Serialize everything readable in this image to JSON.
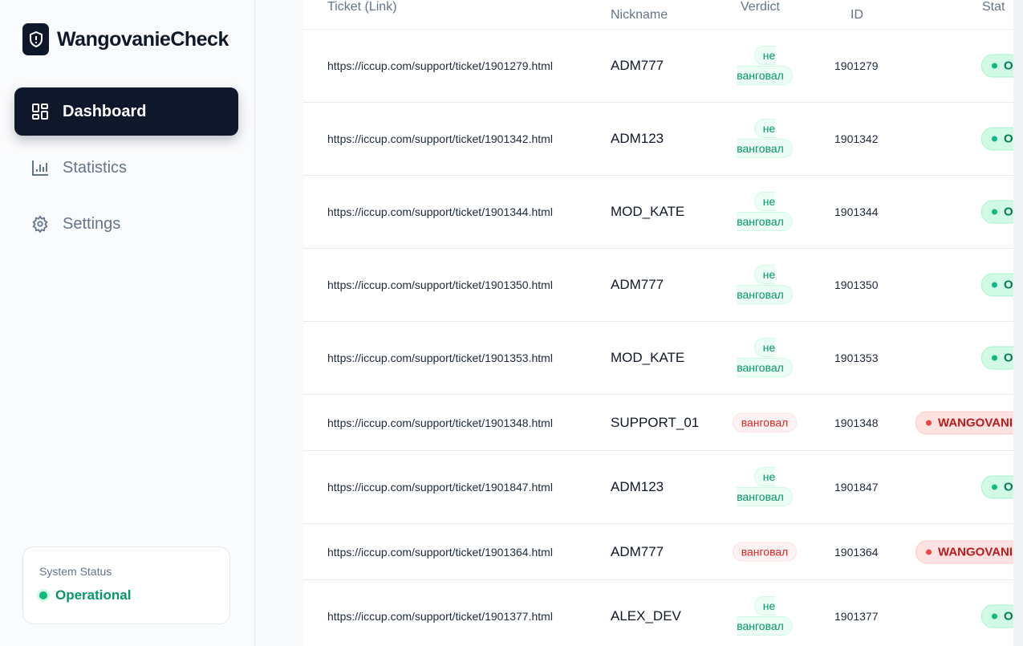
{
  "app": {
    "name": "WangovanieCheck"
  },
  "nav": [
    {
      "label": "Dashboard",
      "icon": "dashboard-icon",
      "active": true
    },
    {
      "label": "Statistics",
      "icon": "bar-chart-icon"
    },
    {
      "label": "Settings",
      "icon": "gear-icon"
    }
  ],
  "system_status": {
    "label": "System Status",
    "value": "Operational"
  },
  "table": {
    "headers": {
      "ticket": "Ticket (Link)",
      "nickname": "Nickname",
      "verdict": "Verdict",
      "id": "ID",
      "status": "Stat"
    },
    "rows": [
      {
        "ticket": "https://iccup.com/support/ticket/1901279.html",
        "nickname": "ADM777",
        "verdict": "не ванговал",
        "id": "1901279",
        "status": "O",
        "ok": true
      },
      {
        "ticket": "https://iccup.com/support/ticket/1901342.html",
        "nickname": "ADM123",
        "verdict": "не ванговал",
        "id": "1901342",
        "status": "O",
        "ok": true
      },
      {
        "ticket": "https://iccup.com/support/ticket/1901344.html",
        "nickname": "MOD_KATE",
        "verdict": "не ванговал",
        "id": "1901344",
        "status": "O",
        "ok": true
      },
      {
        "ticket": "https://iccup.com/support/ticket/1901350.html",
        "nickname": "ADM777",
        "verdict": "не ванговал",
        "id": "1901350",
        "status": "O",
        "ok": true
      },
      {
        "ticket": "https://iccup.com/support/ticket/1901353.html",
        "nickname": "MOD_KATE",
        "verdict": "не ванговал",
        "id": "1901353",
        "status": "O",
        "ok": true
      },
      {
        "ticket": "https://iccup.com/support/ticket/1901348.html",
        "nickname": "SUPPORT_01",
        "verdict": "ванговал",
        "id": "1901348",
        "status": "WANGOVANI",
        "ok": false
      },
      {
        "ticket": "https://iccup.com/support/ticket/1901847.html",
        "nickname": "ADM123",
        "verdict": "не ванговал",
        "id": "1901847",
        "status": "O",
        "ok": true
      },
      {
        "ticket": "https://iccup.com/support/ticket/1901364.html",
        "nickname": "ADM777",
        "verdict": "ванговал",
        "id": "1901364",
        "status": "WANGOVANI",
        "ok": false
      },
      {
        "ticket": "https://iccup.com/support/ticket/1901377.html",
        "nickname": "ALEX_DEV",
        "verdict": "не ванговал",
        "id": "1901377",
        "status": "O",
        "ok": true
      }
    ]
  },
  "colors": {
    "primary": "#0f172a",
    "success": "#059669",
    "danger": "#dc2626"
  }
}
